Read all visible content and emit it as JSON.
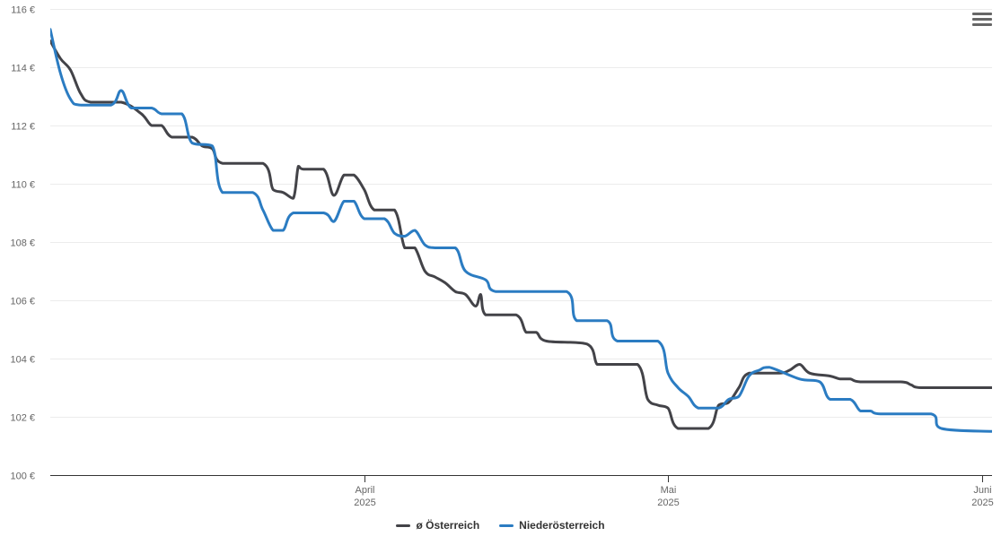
{
  "chart_data": {
    "type": "line",
    "title": "",
    "xlabel": "",
    "ylabel": "",
    "x_range": [
      "2025-03-01",
      "2025-06-01"
    ],
    "ylim": [
      100,
      116
    ],
    "y_ticks": [
      100,
      102,
      104,
      106,
      108,
      110,
      112,
      114,
      116
    ],
    "y_tick_labels": [
      "100 €",
      "102 €",
      "104 €",
      "106 €",
      "108 €",
      "110 €",
      "112 €",
      "114 €",
      "116 €"
    ],
    "x_ticks": [
      {
        "date": "2025-04-01",
        "month": "April",
        "year": "2025"
      },
      {
        "date": "2025-05-01",
        "month": "Mai",
        "year": "2025"
      },
      {
        "date": "2025-06-01",
        "month": "Juni",
        "year": "2025"
      }
    ],
    "grid": "horizontal",
    "legend_position": "bottom-center",
    "series": [
      {
        "name": "ø Österreich",
        "color": "#434348",
        "points": [
          [
            "2025-03-01",
            114.9
          ],
          [
            "2025-03-02",
            114.3
          ],
          [
            "2025-03-03",
            113.9
          ],
          [
            "2025-03-04",
            113.1
          ],
          [
            "2025-03-05",
            112.8
          ],
          [
            "2025-03-08",
            112.8
          ],
          [
            "2025-03-10",
            112.4
          ],
          [
            "2025-03-11",
            112.0
          ],
          [
            "2025-03-12",
            112.0
          ],
          [
            "2025-03-13",
            111.6
          ],
          [
            "2025-03-15",
            111.6
          ],
          [
            "2025-03-16",
            111.3
          ],
          [
            "2025-03-17",
            111.2
          ],
          [
            "2025-03-18",
            110.7
          ],
          [
            "2025-03-22",
            110.7
          ],
          [
            "2025-03-23",
            109.8
          ],
          [
            "2025-03-24",
            109.7
          ],
          [
            "2025-03-25",
            109.5
          ],
          [
            "2025-03-25.5",
            110.6
          ],
          [
            "2025-03-26",
            110.5
          ],
          [
            "2025-03-28",
            110.5
          ],
          [
            "2025-03-29",
            109.6
          ],
          [
            "2025-03-30",
            110.3
          ],
          [
            "2025-03-31",
            110.3
          ],
          [
            "2025-04-01",
            109.8
          ],
          [
            "2025-04-02",
            109.1
          ],
          [
            "2025-04-04",
            109.1
          ],
          [
            "2025-04-05",
            107.8
          ],
          [
            "2025-04-06",
            107.8
          ],
          [
            "2025-04-07",
            107.0
          ],
          [
            "2025-04-08",
            106.8
          ],
          [
            "2025-04-09",
            106.6
          ],
          [
            "2025-04-10",
            106.3
          ],
          [
            "2025-04-11",
            106.2
          ],
          [
            "2025-04-12",
            105.8
          ],
          [
            "2025-04-12.5",
            106.2
          ],
          [
            "2025-04-13",
            105.5
          ],
          [
            "2025-04-16",
            105.5
          ],
          [
            "2025-04-17",
            104.9
          ],
          [
            "2025-04-18",
            104.9
          ],
          [
            "2025-04-19",
            104.6
          ],
          [
            "2025-04-23",
            104.5
          ],
          [
            "2025-04-24",
            103.8
          ],
          [
            "2025-04-25",
            103.8
          ],
          [
            "2025-04-28",
            103.8
          ],
          [
            "2025-04-29",
            102.6
          ],
          [
            "2025-04-30",
            102.4
          ],
          [
            "2025-05-01",
            102.3
          ],
          [
            "2025-05-02",
            101.6
          ],
          [
            "2025-05-05",
            101.6
          ],
          [
            "2025-05-06",
            102.4
          ],
          [
            "2025-05-07",
            102.5
          ],
          [
            "2025-05-08",
            103.0
          ],
          [
            "2025-05-09",
            103.5
          ],
          [
            "2025-05-12",
            103.5
          ],
          [
            "2025-05-13",
            103.6
          ],
          [
            "2025-05-14",
            103.8
          ],
          [
            "2025-05-15",
            103.5
          ],
          [
            "2025-05-17",
            103.4
          ],
          [
            "2025-05-18",
            103.3
          ],
          [
            "2025-05-19",
            103.3
          ],
          [
            "2025-05-20",
            103.2
          ],
          [
            "2025-05-24",
            103.2
          ],
          [
            "2025-05-25",
            103.1
          ],
          [
            "2025-05-26",
            103.0
          ],
          [
            "2025-06-02",
            103.0
          ]
        ]
      },
      {
        "name": "Niederösterreich",
        "color": "#2b7cc2",
        "points": [
          [
            "2025-03-01",
            115.3
          ],
          [
            "2025-03-02",
            113.8
          ],
          [
            "2025-03-03",
            112.9
          ],
          [
            "2025-03-04",
            112.7
          ],
          [
            "2025-03-07",
            112.7
          ],
          [
            "2025-03-08",
            113.2
          ],
          [
            "2025-03-09",
            112.6
          ],
          [
            "2025-03-11",
            112.6
          ],
          [
            "2025-03-12",
            112.4
          ],
          [
            "2025-03-14",
            112.4
          ],
          [
            "2025-03-15",
            111.4
          ],
          [
            "2025-03-17",
            111.3
          ],
          [
            "2025-03-18",
            109.7
          ],
          [
            "2025-03-21",
            109.7
          ],
          [
            "2025-03-22",
            109.1
          ],
          [
            "2025-03-23",
            108.4
          ],
          [
            "2025-03-24",
            108.4
          ],
          [
            "2025-03-25",
            109.0
          ],
          [
            "2025-03-28",
            109.0
          ],
          [
            "2025-03-29",
            108.7
          ],
          [
            "2025-03-30",
            109.4
          ],
          [
            "2025-03-31",
            109.4
          ],
          [
            "2025-04-01",
            108.8
          ],
          [
            "2025-04-03",
            108.8
          ],
          [
            "2025-04-04",
            108.3
          ],
          [
            "2025-04-05",
            108.2
          ],
          [
            "2025-04-06",
            108.4
          ],
          [
            "2025-04-07",
            107.9
          ],
          [
            "2025-04-08",
            107.8
          ],
          [
            "2025-04-10",
            107.8
          ],
          [
            "2025-04-11",
            107.0
          ],
          [
            "2025-04-13",
            106.7
          ],
          [
            "2025-04-14",
            106.3
          ],
          [
            "2025-04-21",
            106.3
          ],
          [
            "2025-04-22",
            105.3
          ],
          [
            "2025-04-25",
            105.3
          ],
          [
            "2025-04-26",
            104.6
          ],
          [
            "2025-04-30",
            104.6
          ],
          [
            "2025-05-01",
            103.5
          ],
          [
            "2025-05-02",
            103.0
          ],
          [
            "2025-05-03",
            102.7
          ],
          [
            "2025-05-04",
            102.3
          ],
          [
            "2025-05-06",
            102.3
          ],
          [
            "2025-05-07",
            102.6
          ],
          [
            "2025-05-08",
            102.7
          ],
          [
            "2025-05-09",
            103.4
          ],
          [
            "2025-05-10",
            103.6
          ],
          [
            "2025-05-11",
            103.7
          ],
          [
            "2025-05-14",
            103.3
          ],
          [
            "2025-05-16",
            103.2
          ],
          [
            "2025-05-17",
            102.6
          ],
          [
            "2025-05-19",
            102.6
          ],
          [
            "2025-05-20",
            102.2
          ],
          [
            "2025-05-21",
            102.2
          ],
          [
            "2025-05-22",
            102.1
          ],
          [
            "2025-05-27",
            102.1
          ],
          [
            "2025-05-28",
            101.6
          ],
          [
            "2025-06-02",
            101.5
          ]
        ]
      }
    ]
  }
}
